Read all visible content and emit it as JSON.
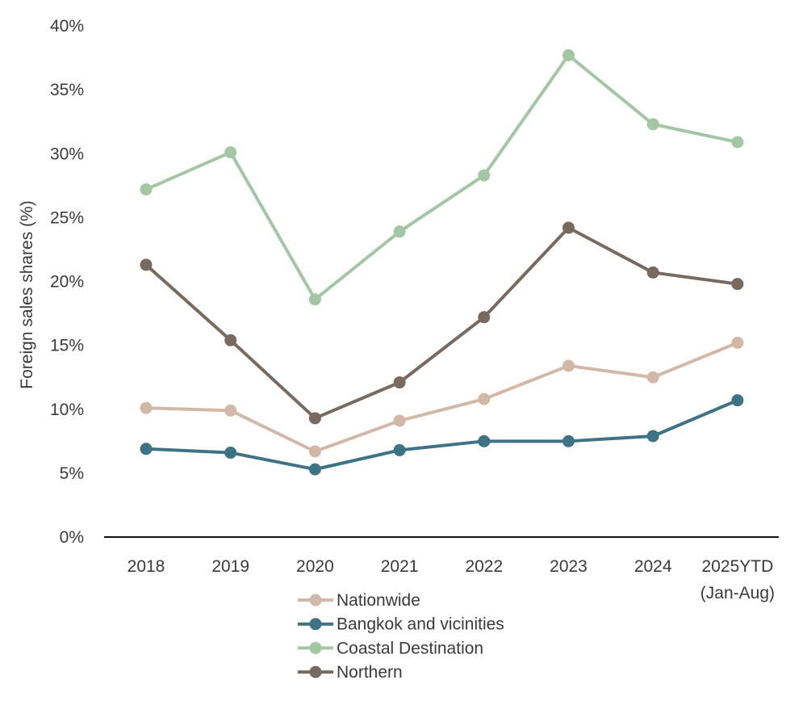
{
  "chart_data": {
    "type": "line",
    "title": "",
    "xlabel": "",
    "ylabel": "Foreign sales shares (%)",
    "ylim": [
      0,
      40
    ],
    "yticks": [
      "0%",
      "5%",
      "10%",
      "15%",
      "20%",
      "25%",
      "30%",
      "35%",
      "40%"
    ],
    "categories": [
      [
        "2018"
      ],
      [
        "2019"
      ],
      [
        "2020"
      ],
      [
        "2021"
      ],
      [
        "2022"
      ],
      [
        "2023"
      ],
      [
        "2024"
      ],
      [
        "2025YTD",
        "(Jan-Aug)"
      ]
    ],
    "series": [
      {
        "name": "Nationwide",
        "color": "#d2b9a7",
        "values": [
          10.1,
          9.9,
          6.7,
          9.1,
          10.8,
          13.4,
          12.5,
          15.2
        ]
      },
      {
        "name": "Bangkok and vicinities",
        "color": "#3d7384",
        "values": [
          6.9,
          6.6,
          5.3,
          6.8,
          7.5,
          7.5,
          7.9,
          10.7
        ]
      },
      {
        "name": "Coastal Destination",
        "color": "#a3c7a2",
        "values": [
          27.2,
          30.1,
          18.6,
          23.9,
          28.3,
          37.7,
          32.3,
          30.9
        ]
      },
      {
        "name": "Northern",
        "color": "#786a5f",
        "values": [
          21.3,
          15.4,
          9.3,
          12.1,
          17.2,
          24.2,
          20.7,
          19.8
        ]
      }
    ],
    "grid": false,
    "legend": "bottom-center"
  }
}
